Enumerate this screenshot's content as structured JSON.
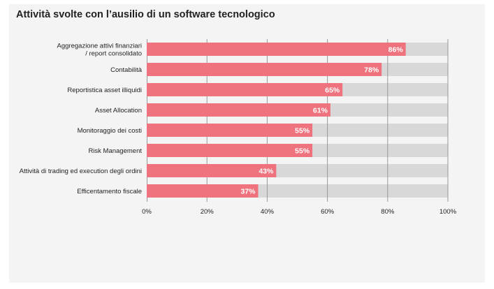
{
  "chart_data": {
    "type": "bar",
    "orientation": "horizontal",
    "title": "Attività svolte con l’ausilio di un software tecnologico",
    "xlabel": "",
    "ylabel": "",
    "categories": [
      [
        "Aggregazione attivi finanziari",
        "/ report consolidato"
      ],
      [
        "Contabilità"
      ],
      [
        "Reportistica asset illiquidi"
      ],
      [
        "Asset Allocation"
      ],
      [
        "Monitoraggio dei costi"
      ],
      [
        "Risk Management"
      ],
      [
        "Attività di trading ed execution degli ordini"
      ],
      [
        "Efficentamento fiscale"
      ]
    ],
    "values": [
      86,
      78,
      65,
      61,
      55,
      55,
      43,
      37
    ],
    "data_labels": [
      "86%",
      "78%",
      "65%",
      "61%",
      "55%",
      "55%",
      "43%",
      "37%"
    ],
    "xlim": [
      0,
      100
    ],
    "xticks": [
      0,
      20,
      40,
      60,
      80,
      100
    ],
    "xtick_labels": [
      "0%",
      "20%",
      "40%",
      "60%",
      "80%",
      "100%"
    ],
    "grid": true,
    "legend": "none",
    "colors": {
      "bar": "#ee737e",
      "track": "#d8d8d8",
      "grid": "#999999",
      "background": "#f4f4f4"
    }
  }
}
